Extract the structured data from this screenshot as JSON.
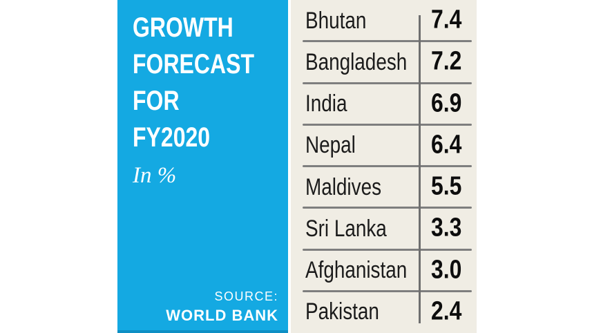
{
  "panel": {
    "title_lines": [
      "GROWTH",
      "FORECAST",
      "FOR",
      "FY2020"
    ],
    "subtitle": "In %",
    "source_label": "SOURCE:",
    "source_name": "WORLD BANK"
  },
  "table": {
    "rows": [
      {
        "country": "Bhutan",
        "value": "7.4"
      },
      {
        "country": "Bangladesh",
        "value": "7.2"
      },
      {
        "country": "India",
        "value": "6.9"
      },
      {
        "country": "Nepal",
        "value": "6.4"
      },
      {
        "country": "Maldives",
        "value": "5.5"
      },
      {
        "country": "Sri Lanka",
        "value": "3.3"
      },
      {
        "country": "Afghanistan",
        "value": "3.0"
      },
      {
        "country": "Pakistan",
        "value": "2.4"
      }
    ]
  },
  "colors": {
    "panel_blue": "#14A9E2",
    "panel_blue_dark": "#0D8FC4",
    "table_bg": "#F0EDE4",
    "row_separator": "#7E7E7E",
    "column_divider": "#6F6F6F",
    "title_text": "#FFFFFF",
    "table_text": "#1B1B1B"
  },
  "chart_data": {
    "type": "table",
    "title": "Growth forecast for FY2020",
    "unit": "In %",
    "source": "World Bank",
    "categories": [
      "Bhutan",
      "Bangladesh",
      "India",
      "Nepal",
      "Maldives",
      "Sri Lanka",
      "Afghanistan",
      "Pakistan"
    ],
    "values": [
      7.4,
      7.2,
      6.9,
      6.4,
      5.5,
      3.3,
      3.0,
      2.4
    ]
  }
}
